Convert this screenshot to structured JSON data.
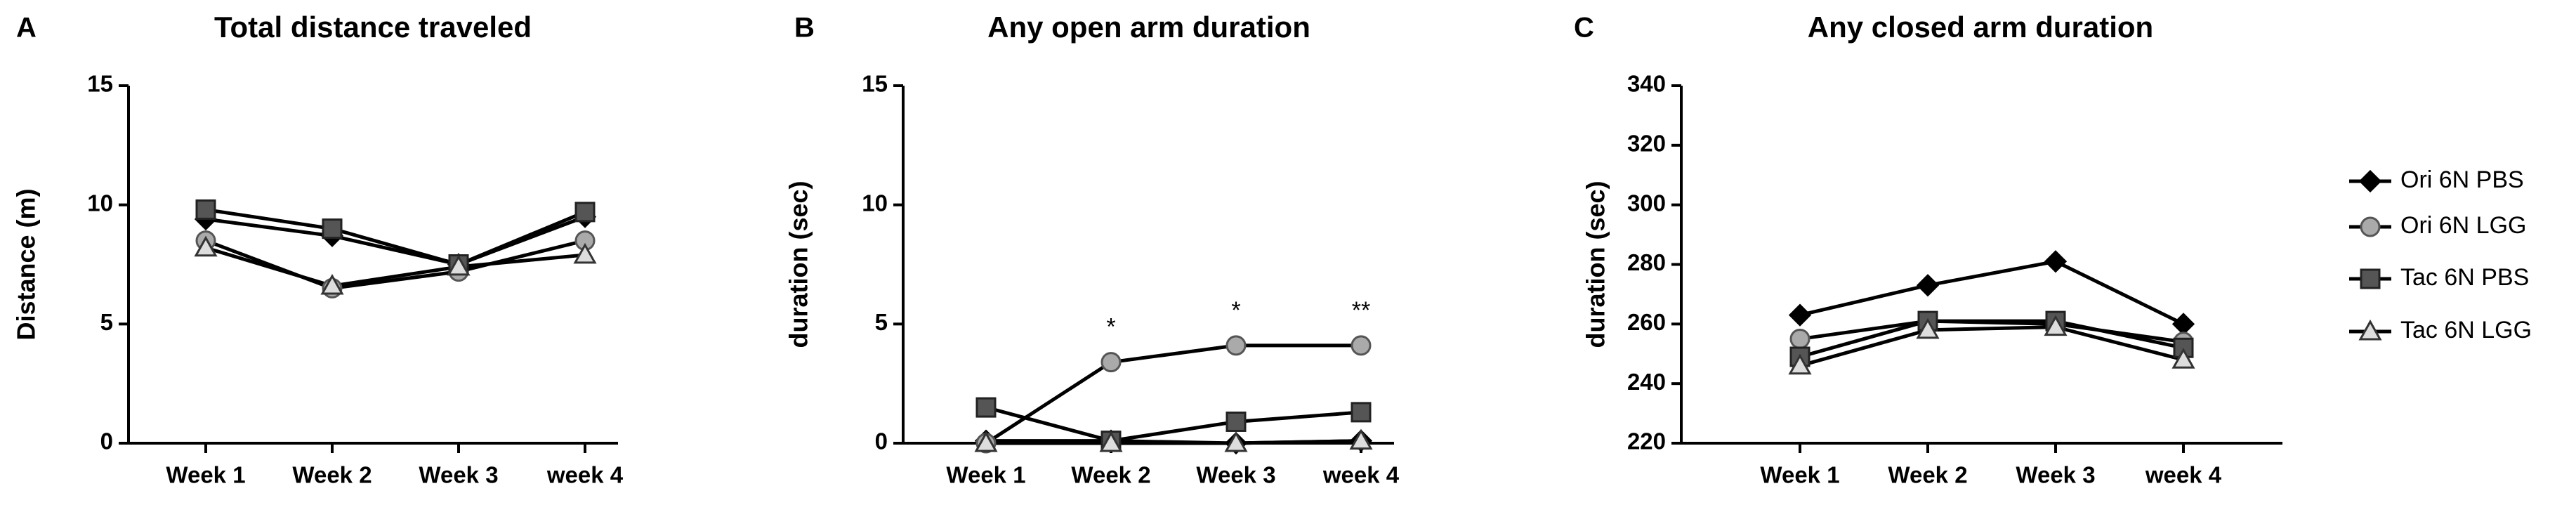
{
  "chart_data": [
    {
      "type": "line",
      "panel_label": "A",
      "title": "Total distance traveled",
      "ylabel": "Distance (m)",
      "categories": [
        "Week 1",
        "Week 2",
        "Week 3",
        "week 4"
      ],
      "ylim": [
        0,
        15
      ],
      "yticks": [
        0,
        5,
        10,
        15
      ],
      "series": [
        {
          "name": "Ori 6N PBS",
          "color": "#000000",
          "marker": "diamond",
          "marker_fill": "#000000",
          "values": [
            9.4,
            8.7,
            7.5,
            9.5
          ]
        },
        {
          "name": "Ori 6N LGG",
          "color": "#000000",
          "marker": "circle",
          "marker_fill": "#aaaaaa",
          "values": [
            8.5,
            6.5,
            7.2,
            8.5
          ]
        },
        {
          "name": "Tac 6N PBS",
          "color": "#000000",
          "marker": "square",
          "marker_fill": "#555555",
          "values": [
            9.8,
            9.0,
            7.5,
            9.7
          ]
        },
        {
          "name": "Tac 6N LGG",
          "color": "#000000",
          "marker": "triangle",
          "marker_fill": "#dddddd",
          "values": [
            8.2,
            6.6,
            7.4,
            7.9
          ]
        }
      ]
    },
    {
      "type": "line",
      "panel_label": "B",
      "title": "Any open arm duration",
      "ylabel": "duration (sec)",
      "categories": [
        "Week 1",
        "Week 2",
        "Week 3",
        "week 4"
      ],
      "ylim": [
        0,
        15
      ],
      "yticks": [
        0,
        5,
        10,
        15
      ],
      "annotations": [
        {
          "text": "*",
          "x": "Week 2"
        },
        {
          "text": "*",
          "x": "Week 3"
        },
        {
          "text": "**",
          "x": "week 4"
        }
      ],
      "series": [
        {
          "name": "Ori 6N PBS",
          "color": "#000000",
          "marker": "diamond",
          "marker_fill": "#000000",
          "values": [
            0.1,
            0.1,
            0,
            0.1
          ]
        },
        {
          "name": "Ori 6N LGG",
          "color": "#000000",
          "marker": "circle",
          "marker_fill": "#aaaaaa",
          "values": [
            0,
            3.4,
            4.1,
            4.1
          ]
        },
        {
          "name": "Tac 6N PBS",
          "color": "#000000",
          "marker": "square",
          "marker_fill": "#555555",
          "values": [
            1.5,
            0.1,
            0.9,
            1.3
          ]
        },
        {
          "name": "Tac 6N LGG",
          "color": "#000000",
          "marker": "triangle",
          "marker_fill": "#dddddd",
          "values": [
            0,
            0,
            0,
            0.1
          ]
        }
      ]
    },
    {
      "type": "line",
      "panel_label": "C",
      "title": "Any closed arm duration",
      "ylabel": "duration (sec)",
      "categories": [
        "Week 1",
        "Week 2",
        "Week 3",
        "week 4"
      ],
      "ylim": [
        220,
        340
      ],
      "yticks": [
        220,
        240,
        260,
        280,
        300,
        320,
        340
      ],
      "series": [
        {
          "name": "Ori 6N PBS",
          "color": "#000000",
          "marker": "diamond",
          "marker_fill": "#000000",
          "values": [
            263,
            273,
            281,
            260
          ]
        },
        {
          "name": "Ori 6N LGG",
          "color": "#000000",
          "marker": "circle",
          "marker_fill": "#aaaaaa",
          "values": [
            255,
            261,
            260,
            254
          ]
        },
        {
          "name": "Tac 6N PBS",
          "color": "#000000",
          "marker": "square",
          "marker_fill": "#555555",
          "values": [
            249,
            261,
            261,
            252
          ]
        },
        {
          "name": "Tac 6N LGG",
          "color": "#000000",
          "marker": "triangle",
          "marker_fill": "#dddddd",
          "values": [
            246,
            258,
            259,
            248
          ]
        }
      ]
    }
  ]
}
